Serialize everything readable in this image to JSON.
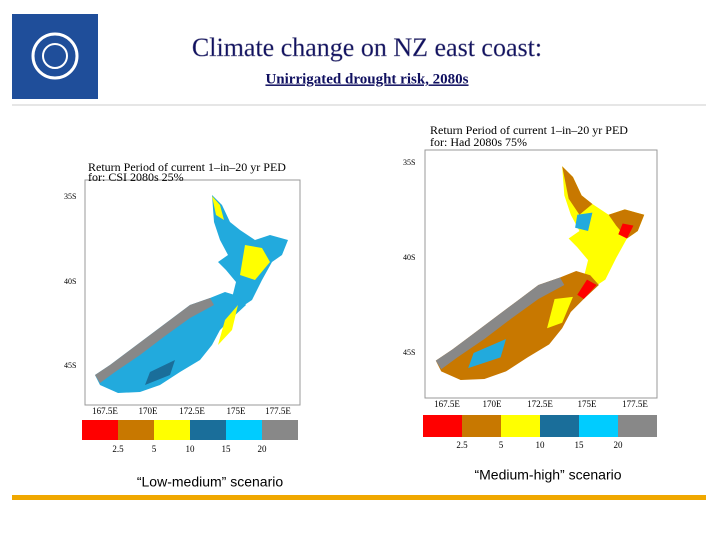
{
  "header": {
    "title": "Climate change on NZ east coast:",
    "subtitle": "Unirrigated drought risk, 2080s"
  },
  "panels": [
    {
      "title": [
        "Return Period of current 1–in–20 yr PED",
        "for: CSI 2080s 25%"
      ],
      "lat_labels": [
        "35S",
        "40S",
        "45S"
      ],
      "lon_labels": [
        "167.5E",
        "170E",
        "172.5E",
        "175E",
        "177.5E"
      ],
      "legend": {
        "colors": [
          "#ff0000",
          "#c87800",
          "#ffff00",
          "#1a6e9a",
          "#00ccff",
          "#888888"
        ],
        "labels": [
          "2.5",
          "5",
          "10",
          "15",
          "20"
        ]
      },
      "caption": "“Low-medium” scenario"
    },
    {
      "title": [
        "Return Period of current 1–in–20 yr PED",
        "for: Had 2080s 75%"
      ],
      "lat_labels": [
        "35S",
        "40S",
        "45S"
      ],
      "lon_labels": [
        "167.5E",
        "170E",
        "172.5E",
        "175E",
        "177.5E"
      ],
      "legend": {
        "colors": [
          "#ff0000",
          "#c87800",
          "#ffff00",
          "#1a6e9a",
          "#00ccff",
          "#888888"
        ],
        "labels": [
          "2.5",
          "5",
          "10",
          "15",
          "20"
        ]
      },
      "caption": "“Medium-high” scenario"
    }
  ]
}
